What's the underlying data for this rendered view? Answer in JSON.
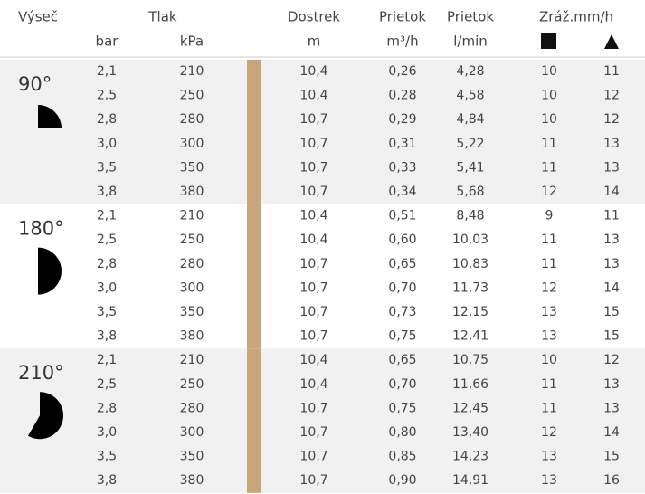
{
  "header": [
    "Výseč",
    "Tlak",
    "Dostrek",
    "Prietok",
    "Prietok",
    "Zráž.mm/h"
  ],
  "units": [
    "bar",
    "kPa",
    "m",
    "m³/h",
    "l/min"
  ],
  "table": {
    "groups": [
      {
        "label": "90°",
        "rows": [
          [
            "2,1",
            "210",
            "10,4",
            "0,26",
            "4,28",
            "10",
            "11"
          ],
          [
            "2,5",
            "250",
            "10,4",
            "0,28",
            "4,58",
            "10",
            "12"
          ],
          [
            "2,8",
            "280",
            "10,7",
            "0,29",
            "4,84",
            "10",
            "12"
          ],
          [
            "3,0",
            "300",
            "10,7",
            "0,31",
            "5,22",
            "11",
            "13"
          ],
          [
            "3,5",
            "350",
            "10,7",
            "0,33",
            "5,41",
            "11",
            "13"
          ],
          [
            "3,8",
            "380",
            "10,7",
            "0,34",
            "5,68",
            "12",
            "14"
          ]
        ]
      },
      {
        "label": "180°",
        "rows": [
          [
            "2,1",
            "210",
            "10,4",
            "0,51",
            "8,48",
            "9",
            "11"
          ],
          [
            "2,5",
            "250",
            "10,4",
            "0,60",
            "10,03",
            "11",
            "13"
          ],
          [
            "2,8",
            "280",
            "10,7",
            "0,65",
            "10,83",
            "11",
            "13"
          ],
          [
            "3,0",
            "300",
            "10,7",
            "0,70",
            "11,73",
            "12",
            "14"
          ],
          [
            "3,5",
            "350",
            "10,7",
            "0,73",
            "12,15",
            "13",
            "15"
          ],
          [
            "3,8",
            "380",
            "10,7",
            "0,75",
            "12,41",
            "13",
            "15"
          ]
        ]
      },
      {
        "label": "210°",
        "rows": [
          [
            "2,1",
            "210",
            "10,4",
            "0,65",
            "10,75",
            "10",
            "12"
          ],
          [
            "2,5",
            "250",
            "10,4",
            "0,70",
            "11,66",
            "11",
            "13"
          ],
          [
            "2,8",
            "280",
            "10,7",
            "0,75",
            "12,45",
            "11",
            "13"
          ],
          [
            "3,0",
            "300",
            "10,7",
            "0,80",
            "13,40",
            "12",
            "14"
          ],
          [
            "3,5",
            "350",
            "10,7",
            "0,85",
            "14,23",
            "13",
            "15"
          ],
          [
            "3,8",
            "380",
            "10,7",
            "0,90",
            "14,91",
            "13",
            "16"
          ]
        ]
      }
    ]
  }
}
